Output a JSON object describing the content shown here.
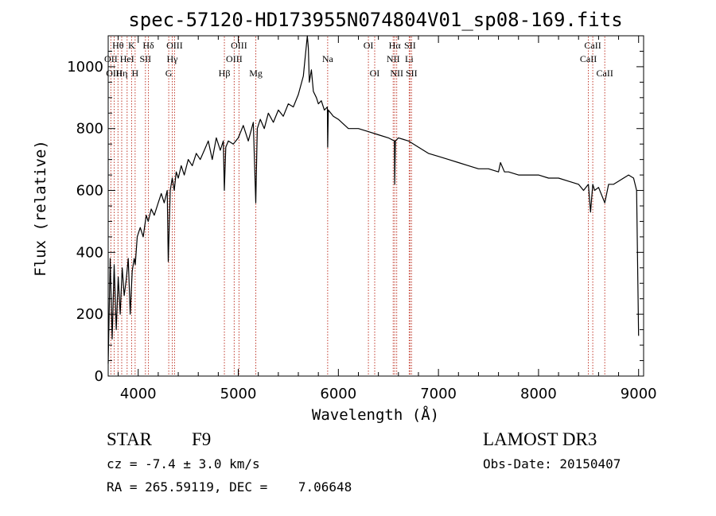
{
  "chart_data": {
    "type": "line",
    "title": "spec-57120-HD173955N074804V01_sp08-169.fits",
    "xlabel": "Wavelength (Å)",
    "ylabel": "Flux (relative)",
    "xlim": [
      3700,
      9050
    ],
    "ylim": [
      0,
      1100
    ],
    "xticks": [
      "4000",
      "5000",
      "6000",
      "7000",
      "8000",
      "9000"
    ],
    "yticks": [
      "0",
      "200",
      "400",
      "600",
      "800",
      "1000"
    ],
    "grid": false,
    "series": [
      {
        "values_note": "",
        "x": [
          3700,
          3720,
          3740,
          3760,
          3780,
          3800,
          3820,
          3840,
          3860,
          3880,
          3900,
          3920,
          3940,
          3960,
          3970,
          3990,
          4000,
          4020,
          4050,
          4080,
          4100,
          4130,
          4160,
          4200,
          4230,
          4260,
          4290,
          4300,
          4320,
          4340,
          4360,
          4380,
          4400,
          4430,
          4460,
          4500,
          4540,
          4580,
          4620,
          4660,
          4700,
          4740,
          4780,
          4820,
          4850,
          4861,
          4875,
          4900,
          4950,
          5000,
          5050,
          5100,
          5150,
          5175,
          5190,
          5220,
          5260,
          5300,
          5350,
          5400,
          5450,
          5500,
          5550,
          5600,
          5650,
          5690,
          5700,
          5710,
          5730,
          5750,
          5780,
          5800,
          5830,
          5860,
          5890,
          5893,
          5900,
          5950,
          6000,
          6100,
          6200,
          6300,
          6400,
          6500,
          6560,
          6563,
          6570,
          6600,
          6700,
          6800,
          6900,
          7000,
          7100,
          7200,
          7300,
          7400,
          7500,
          7600,
          7620,
          7660,
          7700,
          7800,
          7900,
          8000,
          8100,
          8200,
          8300,
          8400,
          8450,
          8498,
          8520,
          8542,
          8560,
          8600,
          8662,
          8700,
          8750,
          8800,
          8850,
          8900,
          8950,
          8980,
          9000
        ],
        "y": [
          40,
          380,
          120,
          360,
          150,
          320,
          200,
          350,
          260,
          310,
          380,
          200,
          340,
          380,
          360,
          450,
          460,
          480,
          450,
          520,
          500,
          540,
          520,
          560,
          590,
          560,
          600,
          370,
          600,
          640,
          600,
          660,
          640,
          680,
          650,
          700,
          680,
          720,
          700,
          730,
          760,
          700,
          770,
          730,
          760,
          600,
          740,
          760,
          750,
          770,
          810,
          760,
          820,
          560,
          800,
          830,
          800,
          850,
          820,
          860,
          840,
          880,
          870,
          910,
          970,
          1100,
          1060,
          950,
          990,
          920,
          900,
          880,
          890,
          860,
          870,
          740,
          860,
          840,
          830,
          800,
          800,
          790,
          780,
          770,
          760,
          620,
          760,
          770,
          760,
          740,
          720,
          710,
          700,
          690,
          680,
          670,
          670,
          660,
          690,
          660,
          660,
          650,
          650,
          650,
          640,
          640,
          630,
          620,
          600,
          620,
          530,
          620,
          600,
          610,
          560,
          620,
          620,
          630,
          640,
          650,
          640,
          600,
          130
        ]
      }
    ],
    "lines": [
      {
        "label": "Hθ",
        "x": 3798,
        "row": 1
      },
      {
        "label": "OII",
        "x": 3727,
        "row": 2
      },
      {
        "label": "OIII",
        "x": 3760,
        "row": 3
      },
      {
        "label": "Hη",
        "x": 3835,
        "row": 3
      },
      {
        "label": "HeI",
        "x": 3889,
        "row": 2
      },
      {
        "label": "K",
        "x": 3934,
        "row": 1
      },
      {
        "label": "H",
        "x": 3969,
        "row": 3
      },
      {
        "label": "SII",
        "x": 4072,
        "row": 2
      },
      {
        "label": "Hδ",
        "x": 4102,
        "row": 1
      },
      {
        "label": "OIII",
        "x": 4363,
        "row": 1
      },
      {
        "label": "Hγ",
        "x": 4340,
        "row": 2
      },
      {
        "label": "G",
        "x": 4305,
        "row": 3
      },
      {
        "label": "Hβ",
        "x": 4861,
        "row": 3
      },
      {
        "label": "OIII",
        "x": 5007,
        "row": 1
      },
      {
        "label": "OIII",
        "x": 4959,
        "row": 2
      },
      {
        "label": "Mg",
        "x": 5175,
        "row": 3
      },
      {
        "label": "Na",
        "x": 5893,
        "row": 2
      },
      {
        "label": "OI",
        "x": 6300,
        "row": 1
      },
      {
        "label": "OI",
        "x": 6363,
        "row": 3
      },
      {
        "label": "Hα",
        "x": 6563,
        "row": 1
      },
      {
        "label": "NII",
        "x": 6548,
        "row": 2
      },
      {
        "label": "NII",
        "x": 6583,
        "row": 3
      },
      {
        "label": "SII",
        "x": 6716,
        "row": 1
      },
      {
        "label": "Li",
        "x": 6708,
        "row": 2
      },
      {
        "label": "SII",
        "x": 6731,
        "row": 3
      },
      {
        "label": "CaII",
        "x": 8542,
        "row": 1
      },
      {
        "label": "CaII",
        "x": 8498,
        "row": 2
      },
      {
        "label": "CaII",
        "x": 8662,
        "row": 3
      }
    ]
  },
  "footer": {
    "object_type": "STAR",
    "subclass": "F9",
    "survey": "LAMOST DR3",
    "cz": "cz = -7.4 ± 3.0 km/s",
    "obs_date": "Obs-Date: 20150407",
    "coords": "RA = 265.59119, DEC =    7.06648"
  },
  "colors": {
    "axis": "#000000",
    "spectrum": "#000000",
    "line_marker": "#c0392b"
  }
}
